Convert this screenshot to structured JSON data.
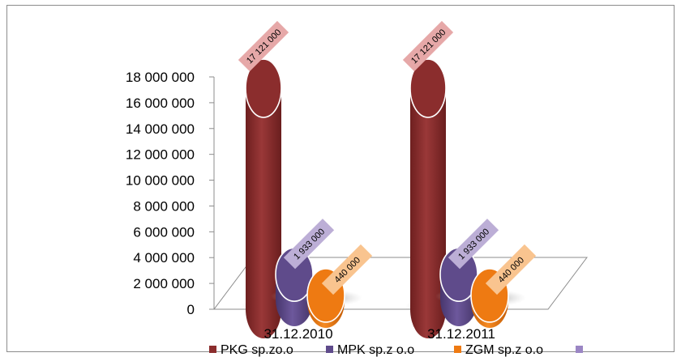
{
  "chart_data": {
    "type": "bar",
    "categories": [
      "31.12.2010",
      "31.12.2011"
    ],
    "series": [
      {
        "name": "PKG sp.zo.o",
        "values": [
          17121000,
          17121000
        ],
        "color": "#8b2d2d",
        "label_bg": "#e6a8a8"
      },
      {
        "name": "MPK sp.z o.o",
        "values": [
          1933000,
          1933000
        ],
        "color": "#5f4b8b",
        "label_bg": "#bcaed6"
      },
      {
        "name": "ZGM sp.z o.o",
        "values": [
          440000,
          440000
        ],
        "color": "#ee7a12",
        "label_bg": "#f9c48f"
      }
    ],
    "data_labels": [
      [
        "17 121 000",
        "17 121 000"
      ],
      [
        "1 933 000",
        "1 933 000"
      ],
      [
        "440 000",
        "440 000"
      ]
    ],
    "ytick_labels": [
      "0",
      "2 000 000",
      "4 000 000",
      "6 000 000",
      "8 000 000",
      "10 000 000",
      "12 000 000",
      "14 000 000",
      "16 000 000",
      "18 000 000"
    ],
    "ylim": [
      0,
      18000000
    ],
    "legend": {
      "placement": "bottom",
      "extra_marker_color": "#9b86c4"
    },
    "title": "",
    "xlabel": "",
    "ylabel": ""
  }
}
